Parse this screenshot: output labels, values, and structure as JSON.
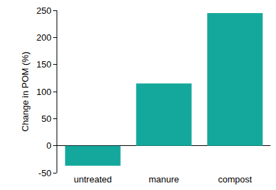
{
  "chart_data": {
    "type": "bar",
    "y_label": "Change in POM (%)",
    "categories": [
      "untreated",
      "manure",
      "compost"
    ],
    "values": [
      -37,
      115,
      245
    ],
    "color": "#14a89c",
    "ylim": [
      -50,
      250
    ],
    "yticks": [
      -50,
      0,
      50,
      100,
      150,
      200,
      250
    ],
    "grid": false
  }
}
